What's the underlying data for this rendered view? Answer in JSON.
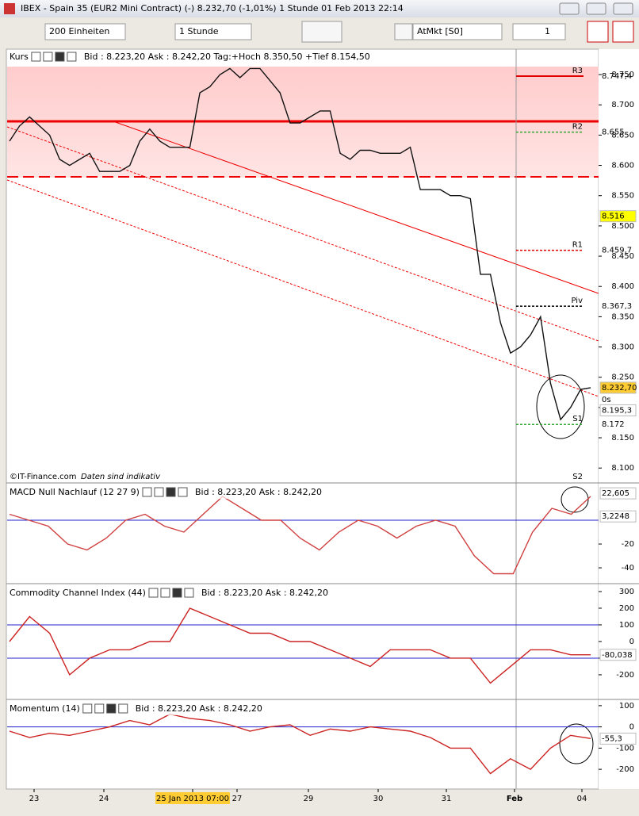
{
  "window": {
    "title": "IBEX - Spain 35 (EUR2 Mini Contract) (-)   8.232,70 (-1,01%)   1 Stunde  01 Feb 2013 22:14"
  },
  "toolbar": {
    "units": "200 Einheiten",
    "interval": "1 Stunde",
    "instrument": "AtMkt [S0]",
    "count": "1"
  },
  "panels": [
    {
      "title": "Kurs",
      "info": "Bid : 8.223,20 Ask : 8.242,20 Tag:+Hoch 8.350,50 +Tief 8.154,50",
      "footer": "©IT-Finance.com",
      "footer_note": "Daten sind indikativ",
      "countdown": "0s",
      "ylim": [
        8078,
        8792
      ],
      "yticks": [
        {
          "value": 8100,
          "label": "8.100"
        },
        {
          "value": 8150,
          "label": "8.150"
        },
        {
          "value": 8200,
          "label": "8.200"
        },
        {
          "value": 8250,
          "label": "8.250"
        },
        {
          "value": 8300,
          "label": "8.300"
        },
        {
          "value": 8350,
          "label": "8.350"
        },
        {
          "value": 8400,
          "label": "8.400"
        },
        {
          "value": 8450,
          "label": "8.450"
        },
        {
          "value": 8500,
          "label": "8.500"
        },
        {
          "value": 8550,
          "label": "8.550"
        },
        {
          "value": 8600,
          "label": "8.600"
        },
        {
          "value": 8650,
          "label": "8.650"
        },
        {
          "value": 8700,
          "label": "8.700"
        },
        {
          "value": 8750,
          "label": "8.750"
        }
      ],
      "series": [
        {
          "color": "#111111",
          "values": [
            8640,
            8665,
            8680,
            8665,
            8650,
            8610,
            8600,
            8610,
            8620,
            8590,
            8590,
            8590,
            8600,
            8640,
            8660,
            8640,
            8630,
            8630,
            8630,
            8720,
            8730,
            8750,
            8760,
            8745,
            8760,
            8760,
            8740,
            8720,
            8670,
            8670,
            8680,
            8690,
            8690,
            8620,
            8610,
            8625,
            8625,
            8620,
            8620,
            8620,
            8630,
            8560,
            8560,
            8560,
            8550,
            8550,
            8545,
            8420,
            8420,
            8340,
            8290,
            8300,
            8320,
            8350,
            8240,
            8180,
            8200,
            8230,
            8232.7
          ]
        }
      ],
      "levels": [
        {
          "name": "R3",
          "value": 8747.4,
          "label": "8.747,4",
          "color": "#e00000"
        },
        {
          "name": "R2",
          "value": 8655,
          "label": "8.655",
          "color": "#33aa33"
        },
        {
          "name": "R1",
          "value": 8459.7,
          "label": "8.459,7",
          "color": "#e00000"
        },
        {
          "name": "Piv",
          "value": 8367.3,
          "label": "8.367,3",
          "color": "#000000"
        },
        {
          "name": "S1",
          "value": 8172,
          "label": "8.172",
          "color": "#33aa33"
        }
      ],
      "s2": "S2",
      "markers": [
        {
          "value": 8516,
          "label": "8.516",
          "bg": "#ffff00",
          "fg": "#000000"
        },
        {
          "value": 8232.7,
          "label": "8.232,70",
          "bg": "#ffcc33",
          "fg": "#000000"
        },
        {
          "value": 8195.3,
          "label": "8.195,3",
          "bg": "#ffffff",
          "fg": "#33aa33"
        }
      ]
    },
    {
      "title": "MACD Null Nachlauf (12 27 9)",
      "info": "Bid : 8.223,20 Ask : 8.242,20",
      "ylim": [
        -53.3,
        30
      ],
      "yticks": [
        -20,
        -40
      ],
      "series": [
        {
          "color": "#d04040",
          "values": [
            5,
            0,
            -5,
            -20,
            -25,
            -15,
            0,
            5,
            -5,
            -10,
            5,
            20,
            10,
            0,
            0,
            -15,
            -25,
            -10,
            0,
            -5,
            -15,
            -5,
            0,
            -5,
            -30,
            -45,
            -45,
            -10,
            10,
            5,
            20
          ]
        }
      ],
      "reference_lines": [
        0
      ],
      "markers": [
        {
          "value": 22.605,
          "label": "22,605",
          "bg": "#ffffff",
          "fg": "#33aa33"
        },
        {
          "value": 3.2248,
          "label": "3,2248",
          "bg": "#ffffff",
          "fg": "#33aa33"
        }
      ]
    },
    {
      "title": "Commodity Channel Index (44)",
      "info": "Bid : 8.223,20 Ask : 8.242,20",
      "ylim": [
        -348,
        338
      ],
      "yticks": [
        300,
        200,
        100,
        0,
        -100,
        -200
      ],
      "series": [
        {
          "color": "#cc2222",
          "values": [
            0,
            150,
            50,
            -200,
            -100,
            -50,
            -50,
            0,
            0,
            200,
            150,
            100,
            50,
            50,
            0,
            0,
            -50,
            -100,
            -150,
            -50,
            -50,
            -50,
            -100,
            -100,
            -250,
            -150,
            -50,
            -50,
            -80,
            -80
          ]
        }
      ],
      "reference_lines": [
        100,
        -100
      ],
      "markers": [
        {
          "value": -80.038,
          "label": "-80,038",
          "bg": "#ffffff",
          "fg": "#33aa33"
        }
      ]
    },
    {
      "title": "Momentum (14)",
      "info": "Bid : 8.223,20 Ask : 8.242,20",
      "ylim": [
        -293,
        122
      ],
      "yticks": [
        100,
        0,
        -100,
        -200
      ],
      "series": [
        {
          "color": "#cc2222",
          "values": [
            -20,
            -50,
            -30,
            -40,
            -20,
            0,
            30,
            10,
            60,
            40,
            30,
            10,
            -20,
            0,
            10,
            -40,
            -10,
            -20,
            0,
            -10,
            -20,
            -50,
            -100,
            -100,
            -220,
            -150,
            -200,
            -100,
            -40,
            -55
          ]
        }
      ],
      "reference_lines": [
        0
      ],
      "markers": [
        {
          "value": -55.3,
          "label": "-55,3",
          "bg": "#ffffff",
          "fg": "#cc2222"
        }
      ]
    }
  ],
  "x_labels": [
    "23",
    "24",
    "25 Jan 2013 07:00",
    "27",
    "29",
    "30",
    "31",
    "Feb",
    "04"
  ]
}
